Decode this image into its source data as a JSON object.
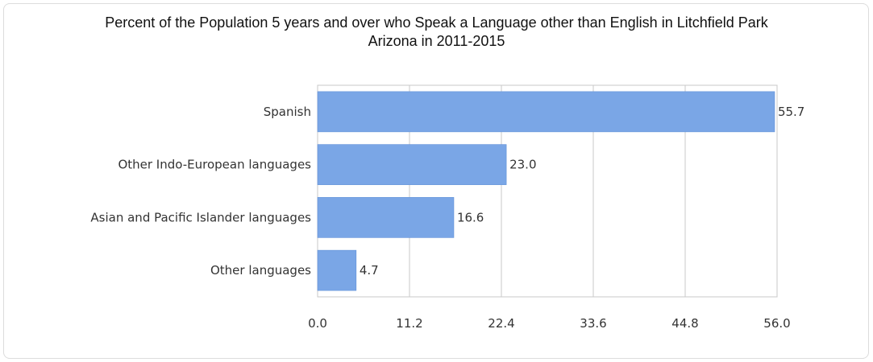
{
  "chart_data": {
    "type": "bar",
    "orientation": "horizontal",
    "title": "Percent of the Population 5 years and over who Speak a Language other than English in Litchfield Park Arizona in 2011-2015",
    "title_lines": [
      "Percent of the Population 5 years and over who Speak a Language other than English in Litchfield Park",
      "Arizona in 2011-2015"
    ],
    "categories": [
      "Spanish",
      "Other Indo-European languages",
      "Asian and Pacific Islander languages",
      "Other languages"
    ],
    "values": [
      55.7,
      23.0,
      16.6,
      4.7
    ],
    "value_labels": [
      "55.7",
      "23.0",
      "16.6",
      "4.7"
    ],
    "xlim": [
      0,
      56
    ],
    "ticks": [
      "0.0",
      "11.2",
      "22.4",
      "33.6",
      "44.8",
      "56.0"
    ],
    "grid": true,
    "bar_color": "#7aa6e6",
    "xlabel": "",
    "ylabel": ""
  }
}
